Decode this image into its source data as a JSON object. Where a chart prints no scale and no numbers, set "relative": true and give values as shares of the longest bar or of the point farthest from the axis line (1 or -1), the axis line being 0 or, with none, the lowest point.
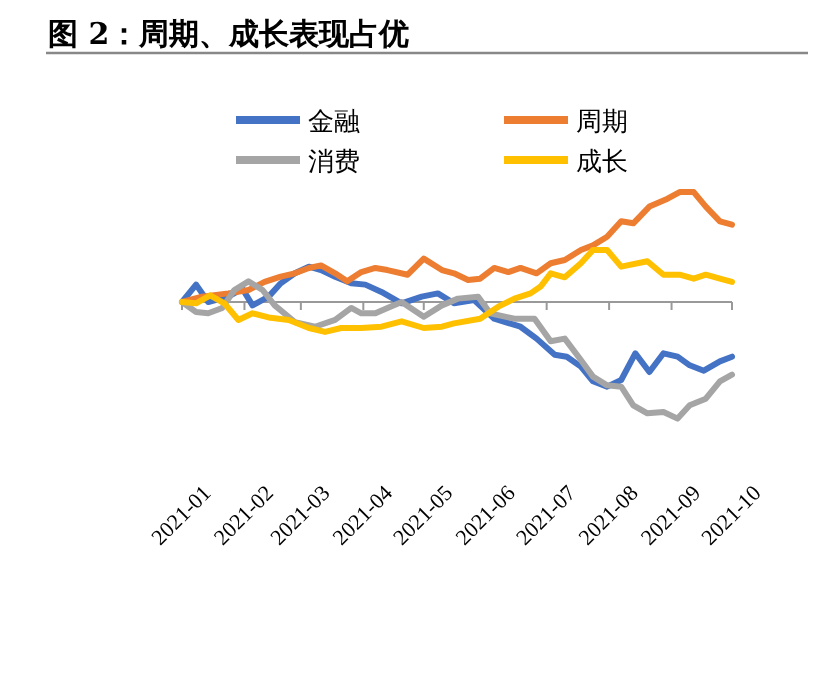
{
  "chart_data": {
    "type": "line",
    "title": "图 2：周期、成长表现占优",
    "relative": true,
    "legend": "top",
    "xlim": [
      "2021-01",
      "2021-10"
    ],
    "xticks": [
      {
        "value": "2021-01",
        "label": "2021-01"
      },
      {
        "value": "2021-02",
        "label": "2021-02"
      },
      {
        "value": "2021-03",
        "label": "2021-03"
      },
      {
        "value": "2021-04",
        "label": "2021-04"
      },
      {
        "value": "2021-05",
        "label": "2021-05"
      },
      {
        "value": "2021-06",
        "label": "2021-06"
      },
      {
        "value": "2021-07",
        "label": "2021-07"
      },
      {
        "value": "2021-08",
        "label": "2021-08"
      },
      {
        "value": "2021-09",
        "label": "2021-09"
      },
      {
        "value": "2021-10",
        "label": "2021-10"
      }
    ],
    "series": [
      {
        "name": "金融",
        "color": "#4472c4",
        "x": [
          "2021-01-01",
          "2021-01-08",
          "2021-01-14",
          "2021-01-24",
          "2021-01-31",
          "2021-02-05",
          "2021-02-13",
          "2021-02-19",
          "2021-02-26",
          "2021-03-05",
          "2021-03-11",
          "2021-03-18",
          "2021-03-26",
          "2021-04-02",
          "2021-04-10",
          "2021-04-20",
          "2021-04-30",
          "2021-05-08",
          "2021-05-16",
          "2021-05-26",
          "2021-06-05",
          "2021-06-18",
          "2021-06-26",
          "2021-07-05",
          "2021-07-11",
          "2021-07-18",
          "2021-07-24",
          "2021-07-31",
          "2021-08-07",
          "2021-08-14",
          "2021-08-21",
          "2021-08-28",
          "2021-09-04",
          "2021-09-10",
          "2021-09-17",
          "2021-09-25",
          "2021-10-01"
        ],
        "values": [
          0,
          0.149,
          0,
          0.046,
          0.114,
          -0.029,
          0.046,
          0.16,
          0.246,
          0.303,
          0.274,
          0.217,
          0.16,
          0.149,
          0.086,
          -0.011,
          0.046,
          0.074,
          -0.011,
          0.017,
          -0.143,
          -0.212,
          -0.314,
          -0.452,
          -0.469,
          -0.554,
          -0.68,
          -0.726,
          -0.669,
          -0.44,
          -0.6,
          -0.44,
          -0.469,
          -0.543,
          -0.589,
          -0.509,
          -0.469
        ]
      },
      {
        "name": "周期",
        "color": "#ed7d31",
        "x": [
          "2021-01-01",
          "2021-01-11",
          "2021-01-24",
          "2021-02-03",
          "2021-02-11",
          "2021-02-19",
          "2021-02-26",
          "2021-03-05",
          "2021-03-11",
          "2021-03-18",
          "2021-03-24",
          "2021-03-31",
          "2021-04-07",
          "2021-04-13",
          "2021-04-23",
          "2021-05-01",
          "2021-05-10",
          "2021-05-16",
          "2021-05-23",
          "2021-05-29",
          "2021-06-05",
          "2021-06-12",
          "2021-06-18",
          "2021-06-26",
          "2021-07-03",
          "2021-07-10",
          "2021-07-18",
          "2021-07-24",
          "2021-07-31",
          "2021-08-07",
          "2021-08-13",
          "2021-08-21",
          "2021-08-30",
          "2021-09-05",
          "2021-09-12",
          "2021-09-18",
          "2021-09-25",
          "2021-10-01"
        ],
        "values": [
          0,
          0.046,
          0.074,
          0.103,
          0.172,
          0.217,
          0.246,
          0.292,
          0.314,
          0.246,
          0.177,
          0.257,
          0.292,
          0.274,
          0.234,
          0.372,
          0.274,
          0.246,
          0.189,
          0.2,
          0.292,
          0.257,
          0.292,
          0.246,
          0.332,
          0.36,
          0.446,
          0.486,
          0.56,
          0.692,
          0.675,
          0.818,
          0.886,
          0.943,
          0.943,
          0.818,
          0.692,
          0.663
        ]
      },
      {
        "name": "消费",
        "color": "#a5a5a5",
        "x": [
          "2021-01-01",
          "2021-01-08",
          "2021-01-14",
          "2021-01-21",
          "2021-01-27",
          "2021-02-03",
          "2021-02-10",
          "2021-02-16",
          "2021-02-26",
          "2021-03-08",
          "2021-03-18",
          "2021-03-26",
          "2021-03-31",
          "2021-04-07",
          "2021-04-13",
          "2021-04-20",
          "2021-05-01",
          "2021-05-10",
          "2021-05-18",
          "2021-05-28",
          "2021-06-03",
          "2021-06-15",
          "2021-06-25",
          "2021-07-03",
          "2021-07-10",
          "2021-07-18",
          "2021-07-24",
          "2021-07-31",
          "2021-08-07",
          "2021-08-13",
          "2021-08-20",
          "2021-08-28",
          "2021-09-04",
          "2021-09-10",
          "2021-09-18",
          "2021-09-25",
          "2021-10-01"
        ],
        "values": [
          0,
          -0.086,
          -0.097,
          -0.051,
          0.103,
          0.177,
          0.103,
          -0.029,
          -0.172,
          -0.212,
          -0.154,
          -0.051,
          -0.097,
          -0.097,
          -0.051,
          0,
          -0.126,
          -0.029,
          0.029,
          0.046,
          -0.097,
          -0.143,
          -0.143,
          -0.337,
          -0.314,
          -0.497,
          -0.64,
          -0.715,
          -0.726,
          -0.886,
          -0.955,
          -0.943,
          -1,
          -0.886,
          -0.829,
          -0.68,
          -0.623
        ]
      },
      {
        "name": "成长",
        "color": "#ffc000",
        "x": [
          "2021-01-01",
          "2021-01-08",
          "2021-01-15",
          "2021-01-22",
          "2021-01-29",
          "2021-02-05",
          "2021-02-13",
          "2021-02-23",
          "2021-03-05",
          "2021-03-13",
          "2021-03-21",
          "2021-03-31",
          "2021-04-10",
          "2021-04-20",
          "2021-05-01",
          "2021-05-10",
          "2021-05-16",
          "2021-05-29",
          "2021-06-07",
          "2021-06-15",
          "2021-06-23",
          "2021-06-28",
          "2021-07-03",
          "2021-07-10",
          "2021-07-18",
          "2021-07-24",
          "2021-07-31",
          "2021-08-07",
          "2021-08-20",
          "2021-08-28",
          "2021-09-05",
          "2021-09-12",
          "2021-09-18",
          "2021-09-25",
          "2021-10-01"
        ],
        "values": [
          0,
          -0.011,
          0.057,
          -0.011,
          -0.154,
          -0.097,
          -0.132,
          -0.154,
          -0.223,
          -0.257,
          -0.223,
          -0.223,
          -0.212,
          -0.166,
          -0.223,
          -0.212,
          -0.183,
          -0.143,
          -0.04,
          0.029,
          0.074,
          0.132,
          0.246,
          0.212,
          0.332,
          0.446,
          0.446,
          0.303,
          0.349,
          0.234,
          0.234,
          0.2,
          0.234,
          0.2,
          0.172
        ]
      }
    ]
  }
}
